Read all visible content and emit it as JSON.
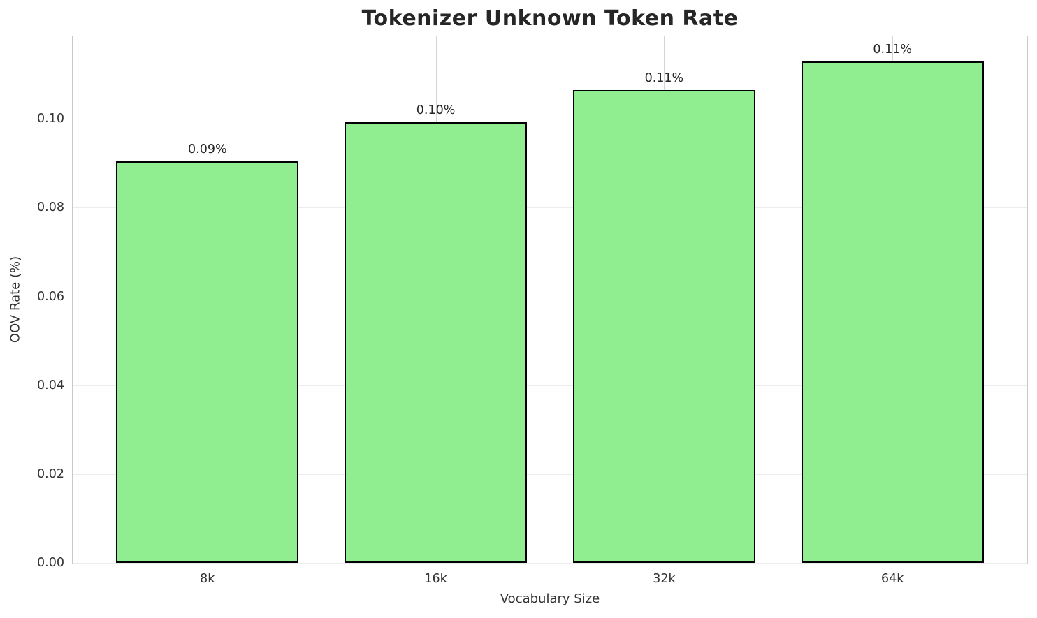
{
  "chart_data": {
    "type": "bar",
    "title": "Tokenizer Unknown Token Rate",
    "xlabel": "Vocabulary Size",
    "ylabel": "OOV Rate (%)",
    "categories": [
      "8k",
      "16k",
      "32k",
      "64k"
    ],
    "values": [
      0.0905,
      0.0992,
      0.1065,
      0.1129
    ],
    "bar_labels": [
      "0.09%",
      "0.10%",
      "0.11%",
      "0.11%"
    ],
    "ytick_labels": [
      "0.00",
      "0.02",
      "0.04",
      "0.06",
      "0.08",
      "0.10"
    ],
    "yticks": [
      0.0,
      0.02,
      0.04,
      0.06,
      0.08,
      0.1
    ],
    "ylim": [
      0,
      0.1186
    ],
    "grid": true,
    "legend": "none",
    "bar_color": "#90EE90",
    "bar_edge_color": "#000000",
    "background_color": "#ffffff"
  }
}
